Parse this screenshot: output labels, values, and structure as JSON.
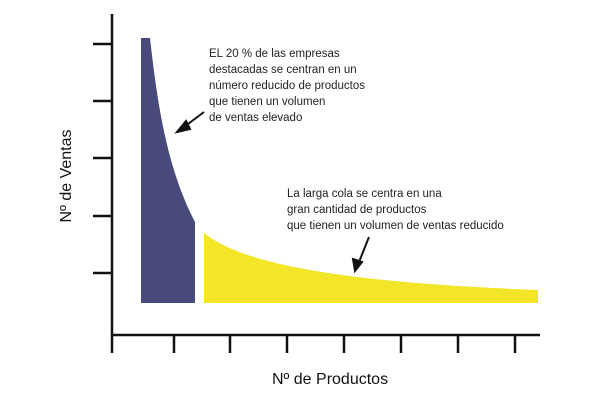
{
  "colors": {
    "head": "#484a7c",
    "tail": "#f3e527",
    "axis": "#111111"
  },
  "axes": {
    "y_label": "Nº de Ventas",
    "x_label": "Nº de Productos"
  },
  "annotations": {
    "head": "EL 20 % de las empresas\ndestacadas se centran en un\nnúmero reducido de productos\nque tienen un volumen\nde ventas elevado",
    "tail": "La larga cola se centra en una\ngran cantidad de productos\nque tienen un volumen de ventas reducido"
  }
}
